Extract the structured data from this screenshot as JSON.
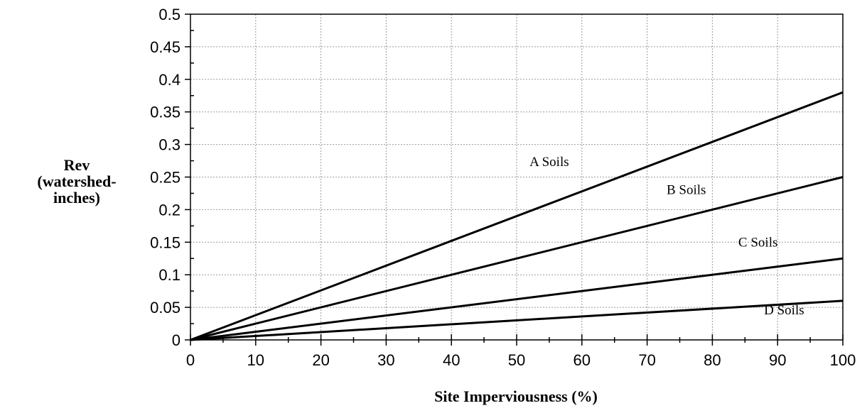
{
  "chart_data": {
    "type": "line",
    "xlabel": "Site Imperviousness (%)",
    "ylabel_lines": [
      "Rev",
      "(watershed-",
      "inches)"
    ],
    "xlim": [
      0,
      100
    ],
    "ylim": [
      0,
      0.5
    ],
    "x_ticks": [
      0,
      10,
      20,
      30,
      40,
      50,
      60,
      70,
      80,
      90,
      100
    ],
    "x_tick_labels": [
      "0",
      "10",
      "20",
      "30",
      "40",
      "50",
      "60",
      "70",
      "80",
      "90",
      "100"
    ],
    "y_ticks": [
      0,
      0.05,
      0.1,
      0.15,
      0.2,
      0.25,
      0.3,
      0.35,
      0.4,
      0.45,
      0.5
    ],
    "y_tick_labels": [
      "0",
      "0.05",
      "0.1",
      "0.15",
      "0.2",
      "0.25",
      "0.3",
      "0.35",
      "0.4",
      "0.45",
      "0.5"
    ],
    "grid": true,
    "series": [
      {
        "name": "A Soils",
        "x": [
          0,
          100
        ],
        "y": [
          0,
          0.38
        ],
        "label_at": [
          55,
          0.267
        ]
      },
      {
        "name": "B Soils",
        "x": [
          0,
          100
        ],
        "y": [
          0,
          0.25
        ],
        "label_at": [
          76,
          0.224
        ]
      },
      {
        "name": "C Soils",
        "x": [
          0,
          100
        ],
        "y": [
          0,
          0.125
        ],
        "label_at": [
          87,
          0.143
        ]
      },
      {
        "name": "D Soils",
        "x": [
          0,
          100
        ],
        "y": [
          0,
          0.06
        ],
        "label_at": [
          91,
          0.039
        ]
      }
    ]
  }
}
